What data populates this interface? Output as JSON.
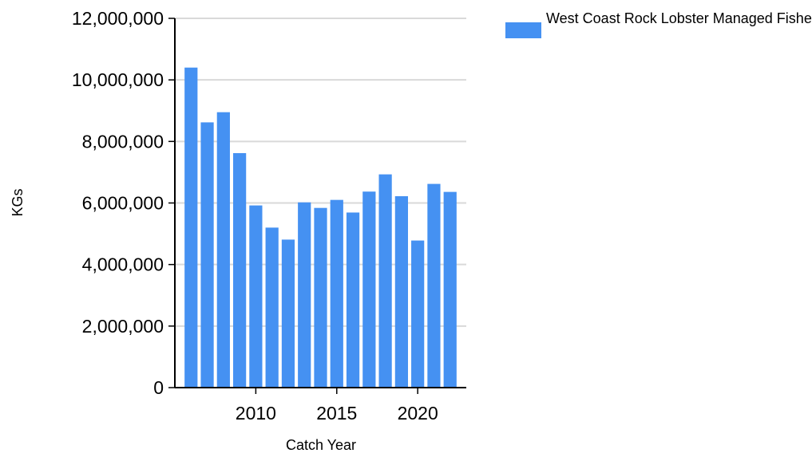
{
  "colors": {
    "bar": "#4591F2",
    "gridline": "#d9d9d9",
    "axis": "#000000"
  },
  "legend": {
    "label": "West Coast Rock Lobster Managed Fishery"
  },
  "chart_data": {
    "type": "bar",
    "title": "",
    "xlabel": "Catch Year",
    "ylabel": "KGs",
    "x": [
      2006,
      2007,
      2008,
      2009,
      2010,
      2011,
      2012,
      2013,
      2014,
      2015,
      2016,
      2017,
      2018,
      2019,
      2020,
      2021,
      2022
    ],
    "series": [
      {
        "name": "West Coast Rock Lobster Managed Fishery",
        "values": [
          10400000,
          8620000,
          8950000,
          7620000,
          5920000,
          5200000,
          4810000,
          6020000,
          5840000,
          6100000,
          5690000,
          6370000,
          6930000,
          6220000,
          4780000,
          6620000,
          6360000
        ]
      }
    ],
    "ylim": [
      0,
      12000000
    ],
    "yticks": [
      0,
      2000000,
      4000000,
      6000000,
      8000000,
      10000000,
      12000000
    ],
    "ytick_labels": [
      "0",
      "2,000,000",
      "4,000,000",
      "6,000,000",
      "8,000,000",
      "10,000,000",
      "12,000,000"
    ],
    "xlim": [
      2005,
      2023
    ],
    "xticks": [
      2010,
      2015,
      2020
    ],
    "xtick_labels": [
      "2010",
      "2015",
      "2020"
    ],
    "grid": true,
    "legend_position": "top-right"
  }
}
